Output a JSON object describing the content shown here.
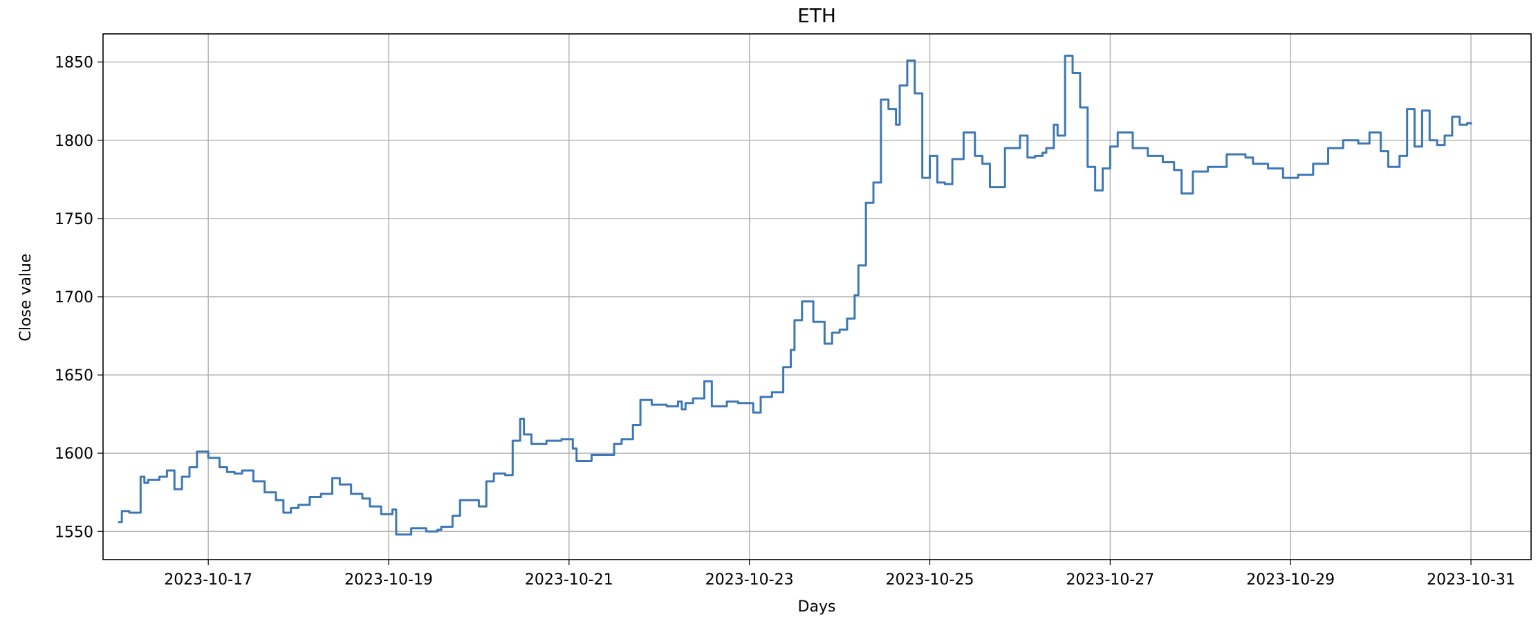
{
  "chart_data": {
    "type": "line",
    "title": "ETH",
    "xlabel": "Days",
    "ylabel": "Close value",
    "line_style": "step",
    "grid": true,
    "line_color": "#3d78b5",
    "xlim": [
      "2023-10-15 20:00",
      "2023-10-31 16:00"
    ],
    "ylim": [
      1532,
      1868
    ],
    "x_ticks": [
      "2023-10-17",
      "2023-10-19",
      "2023-10-21",
      "2023-10-23",
      "2023-10-25",
      "2023-10-27",
      "2023-10-29",
      "2023-10-31"
    ],
    "y_ticks": [
      1550,
      1600,
      1650,
      1700,
      1750,
      1800,
      1850
    ],
    "series": [
      {
        "x": [
          "2023-10-16 00:00",
          "2023-10-16 01:00",
          "2023-10-16 03:00",
          "2023-10-16 06:00",
          "2023-10-16 07:00",
          "2023-10-16 08:00",
          "2023-10-16 11:00",
          "2023-10-16 13:00",
          "2023-10-16 15:00",
          "2023-10-16 17:00",
          "2023-10-16 19:00",
          "2023-10-16 21:00",
          "2023-10-17 00:00",
          "2023-10-17 03:00",
          "2023-10-17 05:00",
          "2023-10-17 07:00",
          "2023-10-17 09:00",
          "2023-10-17 12:00",
          "2023-10-17 15:00",
          "2023-10-17 18:00",
          "2023-10-17 20:00",
          "2023-10-17 22:00",
          "2023-10-18 00:00",
          "2023-10-18 03:00",
          "2023-10-18 06:00",
          "2023-10-18 09:00",
          "2023-10-18 11:00",
          "2023-10-18 14:00",
          "2023-10-18 17:00",
          "2023-10-18 19:00",
          "2023-10-18 22:00",
          "2023-10-19 01:00",
          "2023-10-19 02:00",
          "2023-10-19 06:00",
          "2023-10-19 10:00",
          "2023-10-19 13:00",
          "2023-10-19 14:00",
          "2023-10-19 17:00",
          "2023-10-19 19:00",
          "2023-10-20 00:00",
          "2023-10-20 02:00",
          "2023-10-20 04:00",
          "2023-10-20 07:00",
          "2023-10-20 09:00",
          "2023-10-20 11:00",
          "2023-10-20 12:00",
          "2023-10-20 14:00",
          "2023-10-20 18:00",
          "2023-10-20 22:00",
          "2023-10-21 01:00",
          "2023-10-21 02:00",
          "2023-10-21 06:00",
          "2023-10-21 12:00",
          "2023-10-21 14:00",
          "2023-10-21 17:00",
          "2023-10-21 19:00",
          "2023-10-21 22:00",
          "2023-10-22 02:00",
          "2023-10-22 05:00",
          "2023-10-22 06:00",
          "2023-10-22 07:00",
          "2023-10-22 09:00",
          "2023-10-22 12:00",
          "2023-10-22 14:00",
          "2023-10-22 18:00",
          "2023-10-22 21:00",
          "2023-10-23 01:00",
          "2023-10-23 03:00",
          "2023-10-23 06:00",
          "2023-10-23 09:00",
          "2023-10-23 11:00",
          "2023-10-23 12:00",
          "2023-10-23 14:00",
          "2023-10-23 17:00",
          "2023-10-23 20:00",
          "2023-10-23 22:00",
          "2023-10-24 00:00",
          "2023-10-24 02:00",
          "2023-10-24 04:00",
          "2023-10-24 05:00",
          "2023-10-24 07:00",
          "2023-10-24 09:00",
          "2023-10-24 11:00",
          "2023-10-24 13:00",
          "2023-10-24 15:00",
          "2023-10-24 16:00",
          "2023-10-24 18:00",
          "2023-10-24 20:00",
          "2023-10-24 22:00",
          "2023-10-25 00:00",
          "2023-10-25 02:00",
          "2023-10-25 04:00",
          "2023-10-25 06:00",
          "2023-10-25 09:00",
          "2023-10-25 12:00",
          "2023-10-25 14:00",
          "2023-10-25 16:00",
          "2023-10-25 20:00",
          "2023-10-26 00:00",
          "2023-10-26 02:00",
          "2023-10-26 04:00",
          "2023-10-26 06:00",
          "2023-10-26 07:00",
          "2023-10-26 09:00",
          "2023-10-26 10:00",
          "2023-10-26 12:00",
          "2023-10-26 14:00",
          "2023-10-26 16:00",
          "2023-10-26 18:00",
          "2023-10-26 20:00",
          "2023-10-26 22:00",
          "2023-10-27 00:00",
          "2023-10-27 02:00",
          "2023-10-27 06:00",
          "2023-10-27 10:00",
          "2023-10-27 14:00",
          "2023-10-27 17:00",
          "2023-10-27 19:00",
          "2023-10-27 22:00",
          "2023-10-28 02:00",
          "2023-10-28 07:00",
          "2023-10-28 12:00",
          "2023-10-28 14:00",
          "2023-10-28 18:00",
          "2023-10-28 22:00",
          "2023-10-29 02:00",
          "2023-10-29 06:00",
          "2023-10-29 10:00",
          "2023-10-29 14:00",
          "2023-10-29 18:00",
          "2023-10-29 21:00",
          "2023-10-30 00:00",
          "2023-10-30 02:00",
          "2023-10-30 05:00",
          "2023-10-30 07:00",
          "2023-10-30 09:00",
          "2023-10-30 11:00",
          "2023-10-30 13:00",
          "2023-10-30 15:00",
          "2023-10-30 17:00",
          "2023-10-30 19:00",
          "2023-10-30 21:00",
          "2023-10-30 23:00",
          "2023-10-31 00:00"
        ],
        "values": [
          1556,
          1563,
          1562,
          1585,
          1581,
          1583,
          1585,
          1589,
          1577,
          1585,
          1591,
          1601,
          1597,
          1591,
          1588,
          1587,
          1589,
          1582,
          1575,
          1570,
          1562,
          1565,
          1567,
          1572,
          1574,
          1584,
          1580,
          1574,
          1571,
          1566,
          1561,
          1564,
          1548,
          1552,
          1550,
          1551,
          1553,
          1560,
          1570,
          1566,
          1582,
          1587,
          1586,
          1608,
          1622,
          1612,
          1606,
          1608,
          1609,
          1603,
          1595,
          1599,
          1606,
          1609,
          1618,
          1634,
          1631,
          1630,
          1633,
          1628,
          1632,
          1635,
          1646,
          1630,
          1633,
          1632,
          1626,
          1636,
          1639,
          1655,
          1666,
          1685,
          1697,
          1684,
          1670,
          1677,
          1679,
          1686,
          1701,
          1720,
          1760,
          1773,
          1826,
          1820,
          1810,
          1835,
          1851,
          1830,
          1776,
          1790,
          1773,
          1772,
          1788,
          1805,
          1790,
          1785,
          1770,
          1795,
          1803,
          1789,
          1790,
          1792,
          1795,
          1810,
          1803,
          1854,
          1843,
          1821,
          1783,
          1768,
          1782,
          1796,
          1805,
          1795,
          1790,
          1786,
          1781,
          1766,
          1780,
          1783,
          1791,
          1789,
          1785,
          1782,
          1776,
          1778,
          1785,
          1795,
          1800,
          1798,
          1805,
          1793,
          1783,
          1790,
          1820,
          1796,
          1819,
          1800,
          1797,
          1803,
          1815,
          1810,
          1811,
          1810
        ]
      }
    ]
  }
}
